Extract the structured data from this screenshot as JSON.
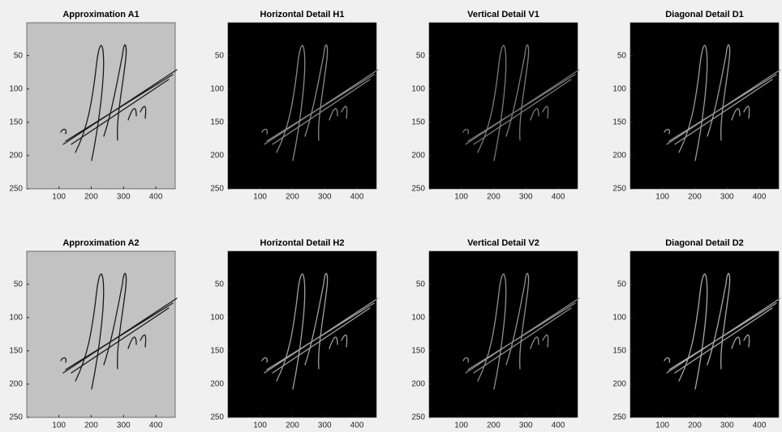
{
  "panels": [
    {
      "title": "Approximation A1",
      "background": "#c2c2c2",
      "stroke": "#1a1a1a",
      "xlim": [
        0.5,
        460
      ],
      "ylim": [
        0.5,
        250
      ],
      "xticks": [
        100,
        200,
        300,
        400
      ],
      "yticks": [
        50,
        100,
        150,
        200,
        250
      ]
    },
    {
      "title": "Horizontal Detail H1",
      "background": "#000000",
      "stroke": "#8a8a8a",
      "xlim": [
        0.5,
        460
      ],
      "ylim": [
        0.5,
        250
      ],
      "xticks": [
        100,
        200,
        300,
        400
      ],
      "yticks": [
        50,
        100,
        150,
        200,
        250
      ]
    },
    {
      "title": "Vertical Detail V1",
      "background": "#000000",
      "stroke": "#7a7a7a",
      "xlim": [
        0.5,
        460
      ],
      "ylim": [
        0.5,
        250
      ],
      "xticks": [
        100,
        200,
        300,
        400
      ],
      "yticks": [
        50,
        100,
        150,
        200,
        250
      ]
    },
    {
      "title": "Diagonal Detail D1",
      "background": "#000000",
      "stroke": "#9a9a9a",
      "xlim": [
        0.5,
        460
      ],
      "ylim": [
        0.5,
        250
      ],
      "xticks": [
        100,
        200,
        300,
        400
      ],
      "yticks": [
        50,
        100,
        150,
        200,
        250
      ]
    },
    {
      "title": "Approximation A2",
      "background": "#c2c2c2",
      "stroke": "#1a1a1a",
      "xlim": [
        0.5,
        460
      ],
      "ylim": [
        0.5,
        250
      ],
      "xticks": [
        100,
        200,
        300,
        400
      ],
      "yticks": [
        50,
        100,
        150,
        200,
        250
      ]
    },
    {
      "title": "Horizontal Detail H2",
      "background": "#000000",
      "stroke": "#a0a0a0",
      "xlim": [
        0.5,
        460
      ],
      "ylim": [
        0.5,
        250
      ],
      "xticks": [
        100,
        200,
        300,
        400
      ],
      "yticks": [
        50,
        100,
        150,
        200,
        250
      ]
    },
    {
      "title": "Vertical Detail V2",
      "background": "#000000",
      "stroke": "#909090",
      "xlim": [
        0.5,
        460
      ],
      "ylim": [
        0.5,
        250
      ],
      "xticks": [
        100,
        200,
        300,
        400
      ],
      "yticks": [
        50,
        100,
        150,
        200,
        250
      ]
    },
    {
      "title": "Diagonal Detail D2",
      "background": "#000000",
      "stroke": "#a8a8a8",
      "xlim": [
        0.5,
        460
      ],
      "ylim": [
        0.5,
        250
      ],
      "xticks": [
        100,
        200,
        300,
        400
      ],
      "yticks": [
        50,
        100,
        150,
        200,
        250
      ]
    }
  ]
}
